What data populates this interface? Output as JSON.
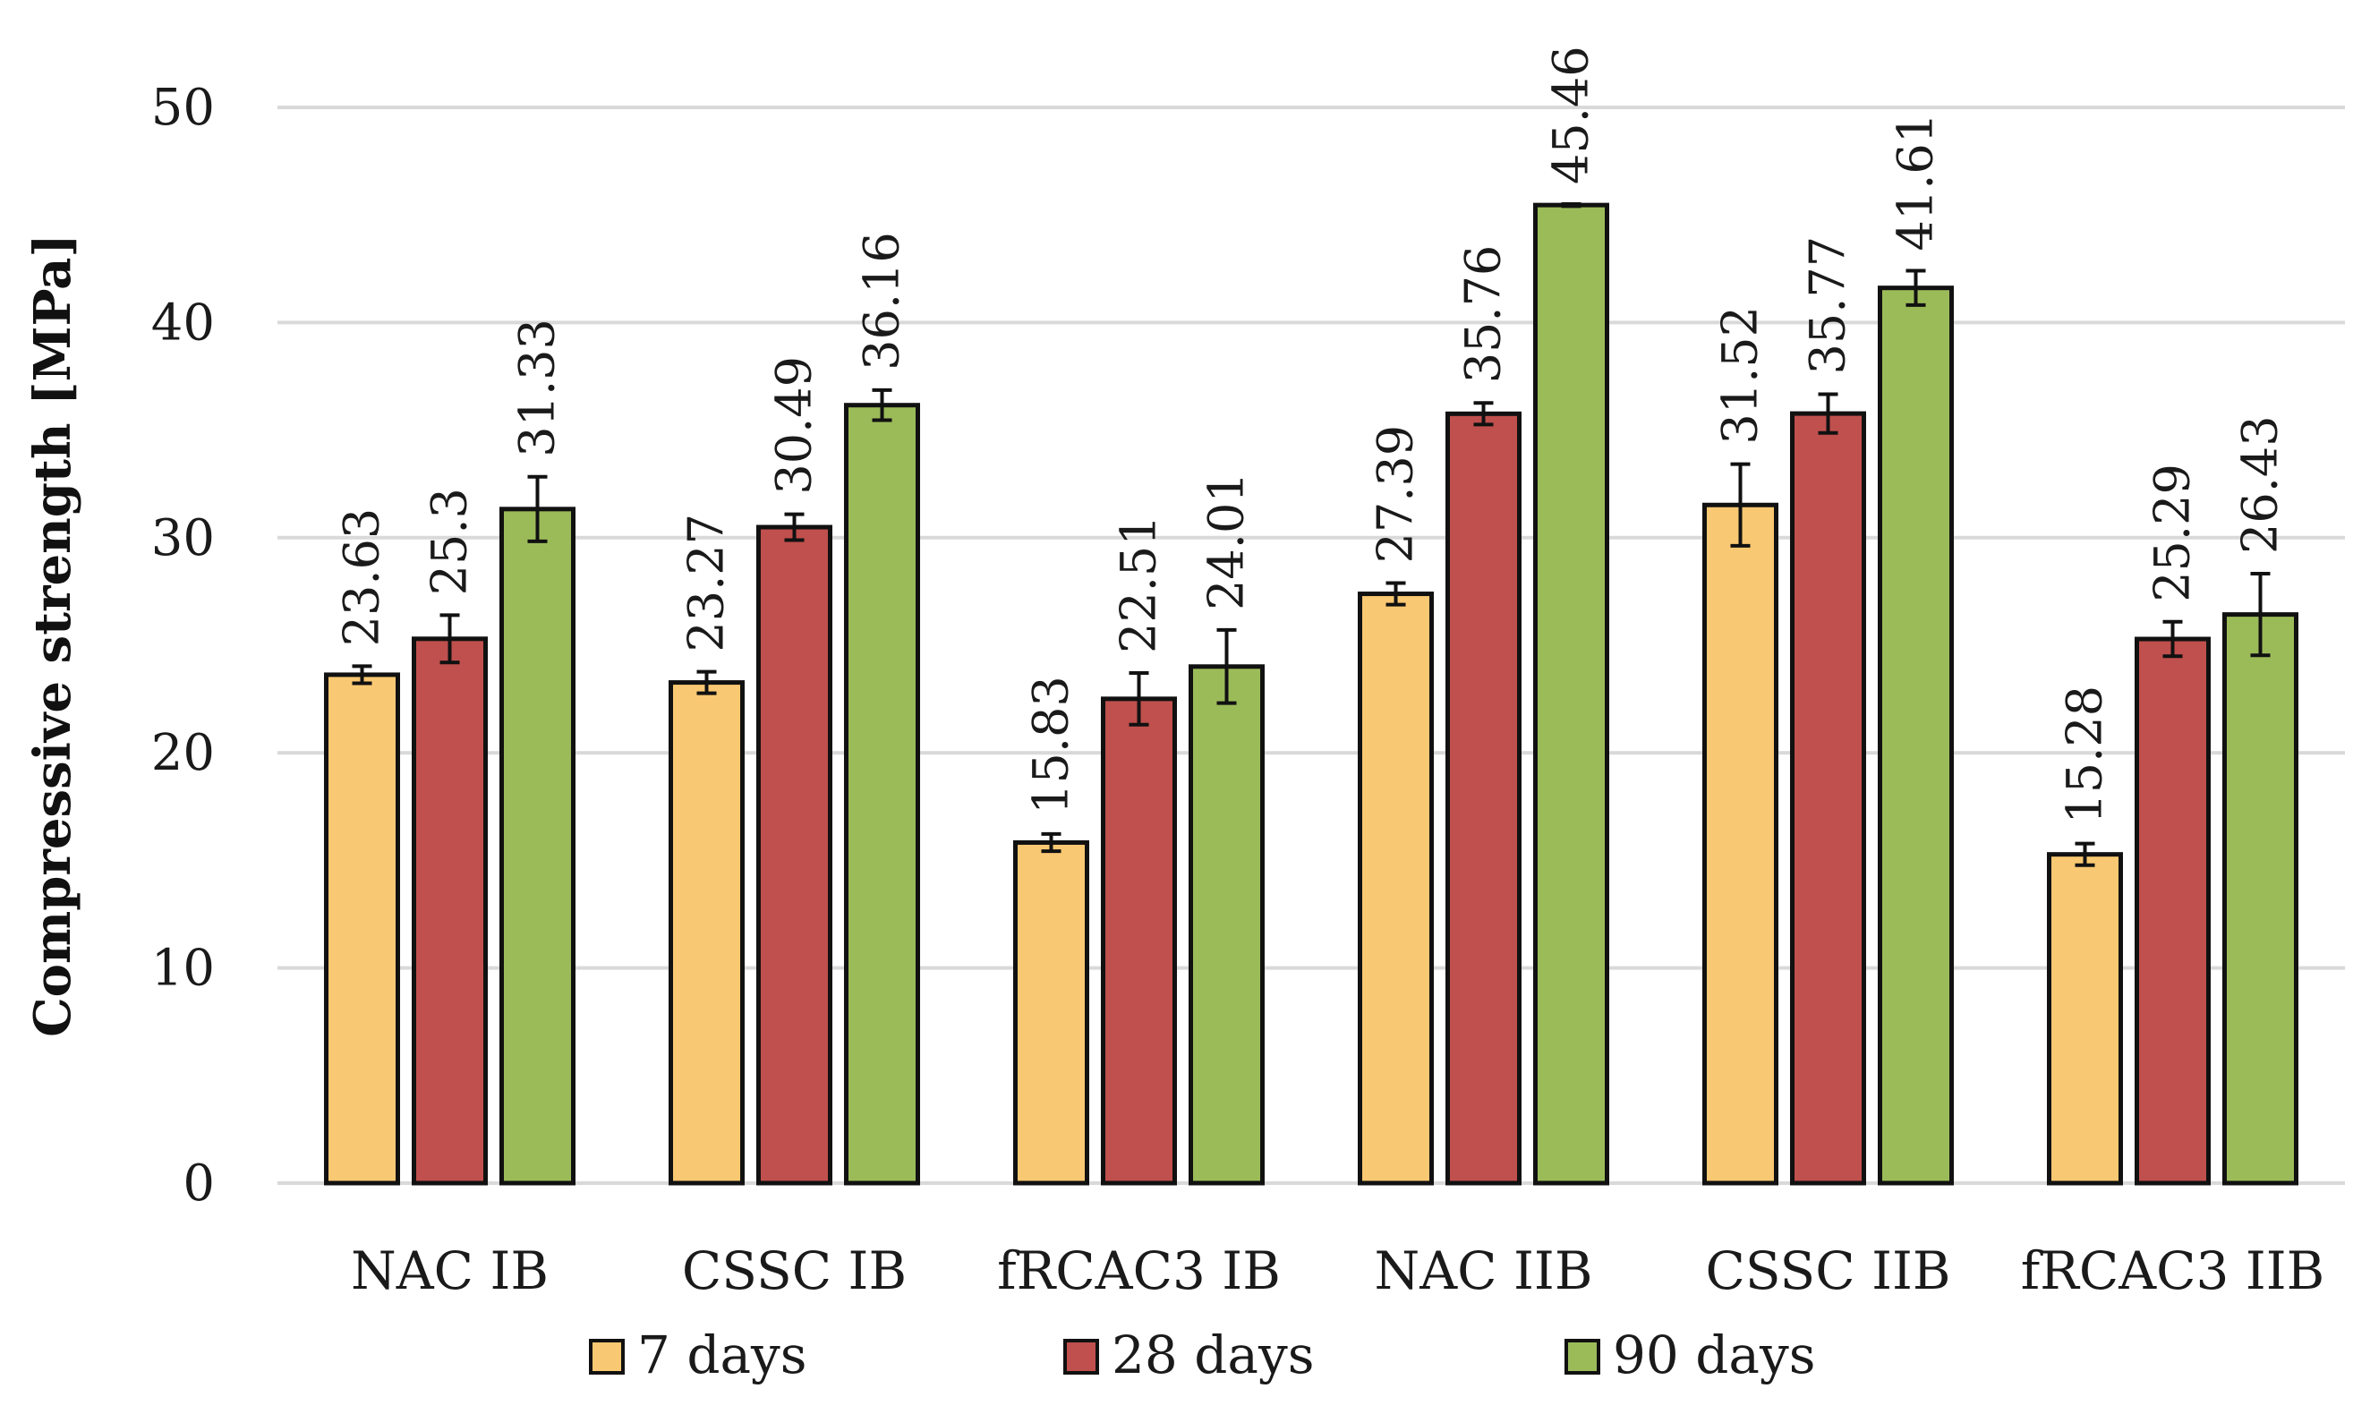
{
  "chart_data": {
    "type": "bar",
    "title": "",
    "xlabel": "",
    "ylabel": "Compressive strength [MPa]",
    "ylim": [
      0,
      50
    ],
    "yticks": [
      0,
      10,
      20,
      30,
      40,
      50
    ],
    "grid": true,
    "legend_position": "bottom",
    "categories": [
      "NAC IB",
      "CSSC IB",
      "fRCAC3 IB",
      "NAC IIB",
      "CSSC IIB",
      "fRCAC3 IIB"
    ],
    "series": [
      {
        "name": "7 days",
        "color": "#f9c872",
        "values": [
          23.63,
          23.27,
          15.83,
          27.39,
          31.52,
          15.28
        ],
        "labels": [
          "23.63",
          "23.27",
          "15.83",
          "27.39",
          "31.52",
          "15.28"
        ],
        "errors": [
          0.4,
          0.5,
          0.4,
          0.5,
          1.9,
          0.5
        ]
      },
      {
        "name": "28 days",
        "color": "#c0504d",
        "values": [
          25.3,
          30.49,
          22.51,
          35.76,
          35.77,
          25.29
        ],
        "labels": [
          "25.3",
          "30.49",
          "22.51",
          "35.76",
          "35.77",
          "25.29"
        ],
        "errors": [
          1.1,
          0.6,
          1.2,
          0.5,
          0.9,
          0.8
        ]
      },
      {
        "name": "90 days",
        "color": "#9bbb59",
        "values": [
          31.33,
          36.16,
          24.01,
          45.46,
          41.61,
          26.43
        ],
        "labels": [
          "31.33",
          "36.16",
          "24.01",
          "45.46",
          "41.61",
          "26.43"
        ],
        "errors": [
          1.5,
          0.7,
          1.7,
          0.05,
          0.8,
          1.9
        ]
      }
    ]
  }
}
